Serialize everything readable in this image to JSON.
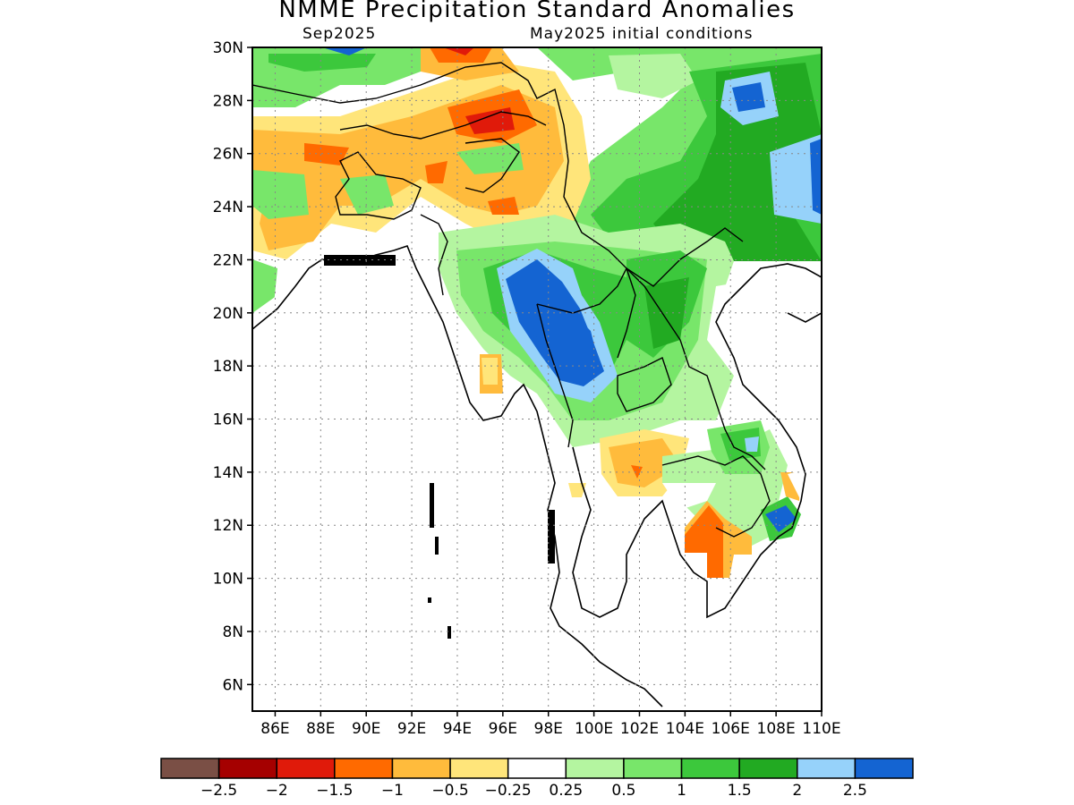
{
  "title": "NMME Precipitation Standard Anomalies",
  "valid_month": "Sep2025",
  "initial_conditions": "May2025 initial conditions",
  "lat_labels": [
    "30N",
    "28N",
    "26N",
    "24N",
    "22N",
    "20N",
    "18N",
    "16N",
    "14N",
    "12N",
    "10N",
    "8N",
    "6N"
  ],
  "lon_labels": [
    "86E",
    "88E",
    "90E",
    "92E",
    "94E",
    "96E",
    "98E",
    "100E",
    "102E",
    "104E",
    "106E",
    "108E",
    "110E"
  ],
  "colorbar": {
    "colors": [
      "#7a4f45",
      "#a50000",
      "#e01a0a",
      "#ff6a00",
      "#ffbb3c",
      "#ffe57a",
      "#ffffff",
      "#b4f5a0",
      "#78e66a",
      "#3cc83c",
      "#22aa22",
      "#96d2fa",
      "#1464d2"
    ],
    "labels": [
      "-2.5",
      "-2",
      "-1.5",
      "-1",
      "-0.5",
      "-0.25",
      "0.25",
      "0.5",
      "1",
      "1.5",
      "2",
      "2.5"
    ]
  },
  "chart_data": {
    "type": "heatmap",
    "variable": "Precipitation Standard Anomalies",
    "lon_range": [
      85,
      110
    ],
    "lat_range": [
      5,
      30
    ],
    "regions": [
      {
        "level": "0.5 to 1.5",
        "lon": [
          85,
          92
        ],
        "lat": [
          28,
          30
        ]
      },
      {
        "level": "0.5 to 2",
        "lon": [
          99,
          110
        ],
        "lat": [
          22,
          30
        ]
      },
      {
        "level": "> 2.5",
        "lon": [
          107,
          108
        ],
        "lat": [
          27.5,
          28.5
        ]
      },
      {
        "level": "> 2.5",
        "lon": [
          97,
          100
        ],
        "lat": [
          17,
          22
        ]
      },
      {
        "level": "-0.25 to -1.5",
        "lon": [
          86,
          99
        ],
        "lat": [
          22,
          28
        ]
      },
      {
        "level": "-1.5 to -2",
        "lon": [
          93,
          97
        ],
        "lat": [
          26,
          30
        ]
      },
      {
        "level": "0.5 to 1.5",
        "lon": [
          95,
          107
        ],
        "lat": [
          15,
          22
        ]
      },
      {
        "level": "-0.5 to -1",
        "lon": [
          100,
          104
        ],
        "lat": [
          13,
          15
        ]
      },
      {
        "level": "-1 to -1.5",
        "lon": [
          104,
          106
        ],
        "lat": [
          10,
          12
        ]
      }
    ]
  }
}
